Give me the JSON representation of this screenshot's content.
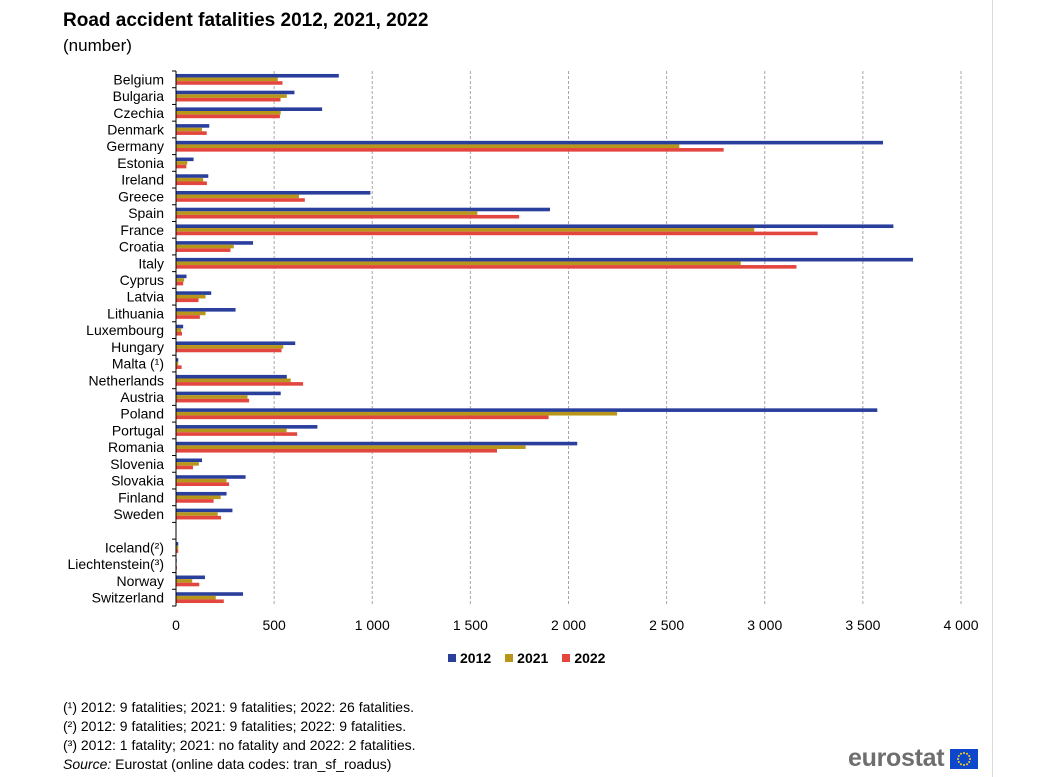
{
  "header": {
    "title": "Road accident fatalities 2012, 2021, 2022",
    "subtitle": "(number)"
  },
  "colors": {
    "2012": "#2a3f9c",
    "2021": "#b8961a",
    "2022": "#e3463f",
    "grid": "#a6a6a6"
  },
  "chart_data": {
    "type": "bar",
    "orientation": "horizontal",
    "title": "Road accident fatalities 2012, 2021, 2022",
    "subtitle": "(number)",
    "categories": [
      "Belgium",
      "Bulgaria",
      "Czechia",
      "Denmark",
      "Germany",
      "Estonia",
      "Ireland",
      "Greece",
      "Spain",
      "France",
      "Croatia",
      "Italy",
      "Cyprus",
      "Latvia",
      "Lithuania",
      "Luxembourg",
      "Hungary",
      "Malta (¹)",
      "Netherlands",
      "Austria",
      "Poland",
      "Portugal",
      "Romania",
      "Slovenia",
      "Slovakia",
      "Finland",
      "Sweden",
      "",
      "Iceland(²)",
      "Liechtenstein(³)",
      "Norway",
      "Switzerland"
    ],
    "series": [
      {
        "name": "2012",
        "values": [
          827,
          601,
          742,
          167,
          3600,
          87,
          162,
          988,
          1903,
          3653,
          390,
          3753,
          51,
          177,
          301,
          34,
          605,
          9,
          562,
          531,
          3571,
          718,
          2042,
          130,
          352,
          255,
          285,
          null,
          9,
          1,
          145,
          339
        ]
      },
      {
        "name": "2021",
        "values": [
          516,
          562,
          531,
          130,
          2562,
          55,
          136,
          624,
          1533,
          2944,
          292,
          2875,
          39,
          148,
          148,
          24,
          544,
          9,
          582,
          362,
          2245,
          561,
          1779,
          114,
          255,
          225,
          210,
          null,
          9,
          0,
          80,
          200
        ]
      },
      {
        "name": "2022",
        "values": [
          540,
          530,
          527,
          154,
          2788,
          50,
          155,
          654,
          1746,
          3267,
          275,
          3159,
          34,
          112,
          119,
          28,
          535,
          26,
          645,
          370,
          1896,
          615,
          1633,
          84,
          268,
          189,
          227,
          null,
          9,
          2,
          116,
          241
        ]
      }
    ],
    "xlim": [
      0,
      4000
    ],
    "xticks": [
      0,
      500,
      1000,
      1500,
      2000,
      2500,
      3000,
      3500,
      4000
    ],
    "xtick_labels": [
      "0",
      "500",
      "1 000",
      "1 500",
      "2 000",
      "2 500",
      "3 000",
      "3 500",
      "4 000"
    ],
    "grid": "vertical dashed",
    "legend_position": "bottom-center"
  },
  "legend": {
    "items": [
      "2012",
      "2021",
      "2022"
    ]
  },
  "notes": {
    "note1": "(¹) 2012: 9 fatalities; 2021: 9 fatalities; 2022: 26 fatalities.",
    "note2": "(²) 2012: 9 fatalities; 2021: 9 fatalities; 2022: 9 fatalities.",
    "note3": "(³) 2012: 1 fatality; 2021: no fatality and 2022: 2 fatalities.",
    "source_label": "Source:",
    "source_text": " Eurostat (online data codes: tran_sf_roadus)"
  },
  "logo": {
    "text": "eurostat"
  }
}
